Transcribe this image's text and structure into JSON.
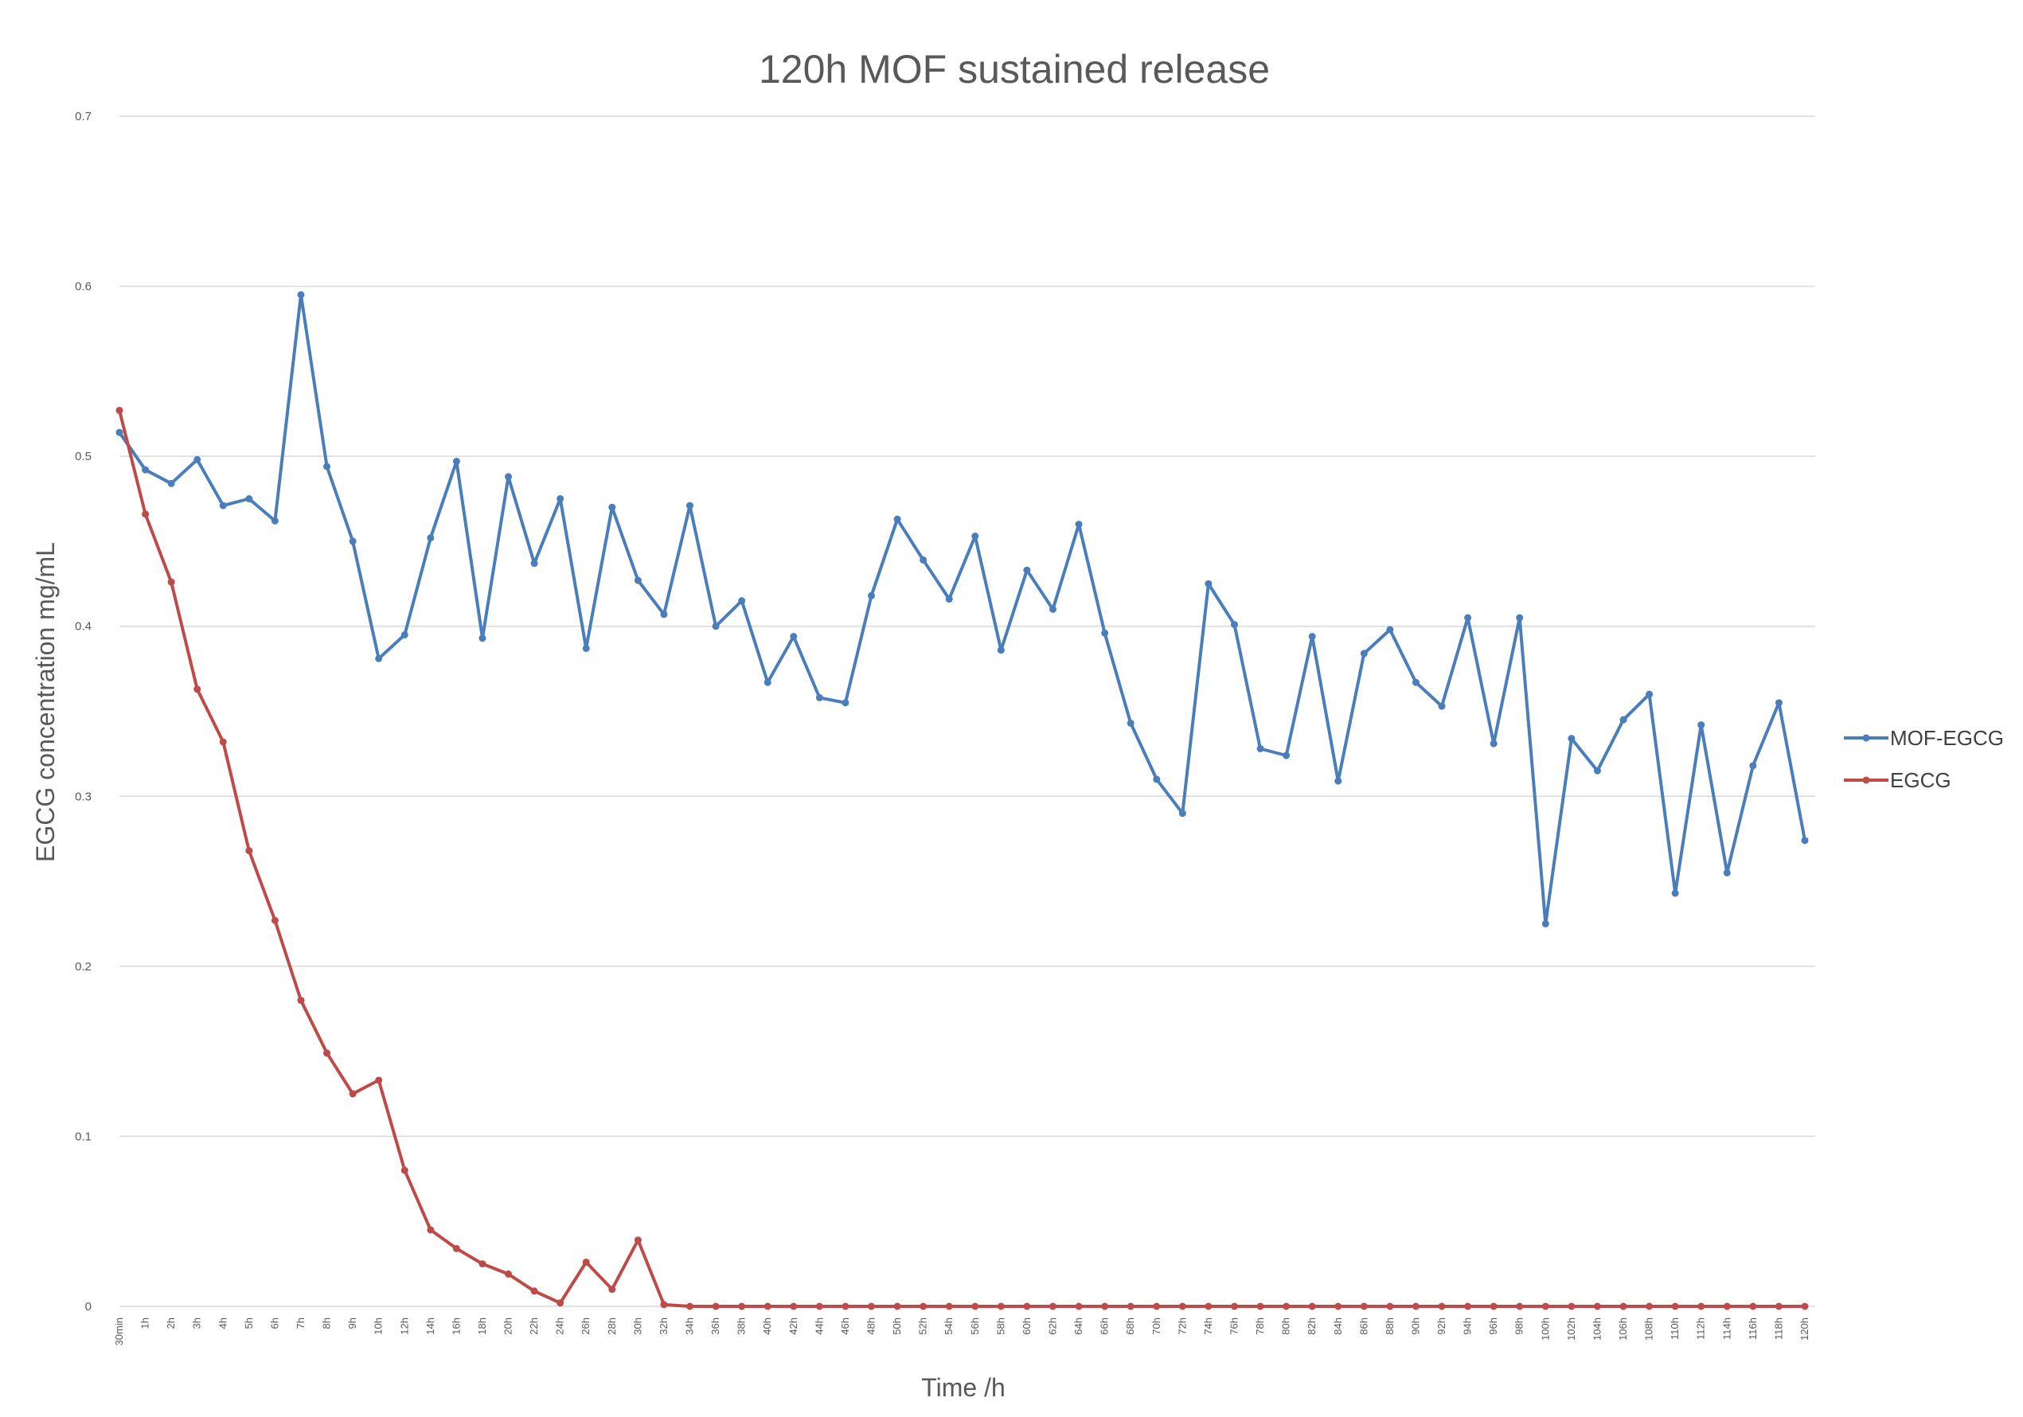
{
  "chart_data": {
    "type": "line",
    "title": "120h MOF sustained release",
    "xlabel": "Time /h",
    "ylabel": "EGCG concentration mg/mL",
    "ylim": [
      0,
      0.7
    ],
    "yticks": [
      "0",
      "0.1",
      "0.2",
      "0.3",
      "0.4",
      "0.5",
      "0.6",
      "0.7"
    ],
    "grid": true,
    "legend_position": "right",
    "categories": [
      "30min",
      "1h",
      "2h",
      "3h",
      "4h",
      "5h",
      "6h",
      "7h",
      "8h",
      "9h",
      "10h",
      "12h",
      "14h",
      "16h",
      "18h",
      "20h",
      "22h",
      "24h",
      "26h",
      "28h",
      "30h",
      "32h",
      "34h",
      "36h",
      "38h",
      "40h",
      "42h",
      "44h",
      "46h",
      "48h",
      "50h",
      "52h",
      "54h",
      "56h",
      "58h",
      "60h",
      "62h",
      "64h",
      "66h",
      "68h",
      "70h",
      "72h",
      "74h",
      "76h",
      "78h",
      "80h",
      "82h",
      "84h",
      "86h",
      "88h",
      "90h",
      "92h",
      "94h",
      "96h",
      "98h",
      "100h",
      "102h",
      "104h",
      "106h",
      "108h",
      "110h",
      "112h",
      "114h",
      "116h",
      "118h",
      "120h"
    ],
    "series": [
      {
        "name": "MOF-EGCG",
        "color": "#4a7ebb",
        "values": [
          0.514,
          0.492,
          0.484,
          0.498,
          0.471,
          0.475,
          0.462,
          0.595,
          0.494,
          0.45,
          0.381,
          0.395,
          0.452,
          0.497,
          0.393,
          0.488,
          0.437,
          0.475,
          0.387,
          0.47,
          0.427,
          0.407,
          0.471,
          0.4,
          0.415,
          0.367,
          0.394,
          0.358,
          0.355,
          0.418,
          0.463,
          0.439,
          0.416,
          0.453,
          0.386,
          0.433,
          0.41,
          0.46,
          0.396,
          0.343,
          0.31,
          0.29,
          0.425,
          0.401,
          0.328,
          0.324,
          0.394,
          0.309,
          0.384,
          0.398,
          0.367,
          0.353,
          0.405,
          0.331,
          0.405,
          0.225,
          0.334,
          0.315,
          0.345,
          0.36,
          0.243,
          0.342,
          0.255,
          0.318,
          0.355,
          0.274
        ]
      },
      {
        "name": "EGCG",
        "color": "#be4b48",
        "values": [
          0.527,
          0.466,
          0.426,
          0.363,
          0.332,
          0.268,
          0.227,
          0.18,
          0.149,
          0.125,
          0.133,
          0.08,
          0.045,
          0.034,
          0.025,
          0.019,
          0.009,
          0.002,
          0.026,
          0.01,
          0.039,
          0.001,
          0,
          0,
          0,
          0,
          0,
          0,
          0,
          0,
          0,
          0,
          0,
          0,
          0,
          0,
          0,
          0,
          0,
          0,
          0,
          0,
          0,
          0,
          0,
          0,
          0,
          0,
          0,
          0,
          0,
          0,
          0,
          0,
          0,
          0,
          0,
          0,
          0,
          0,
          0,
          0,
          0,
          0,
          0,
          0
        ]
      }
    ]
  }
}
